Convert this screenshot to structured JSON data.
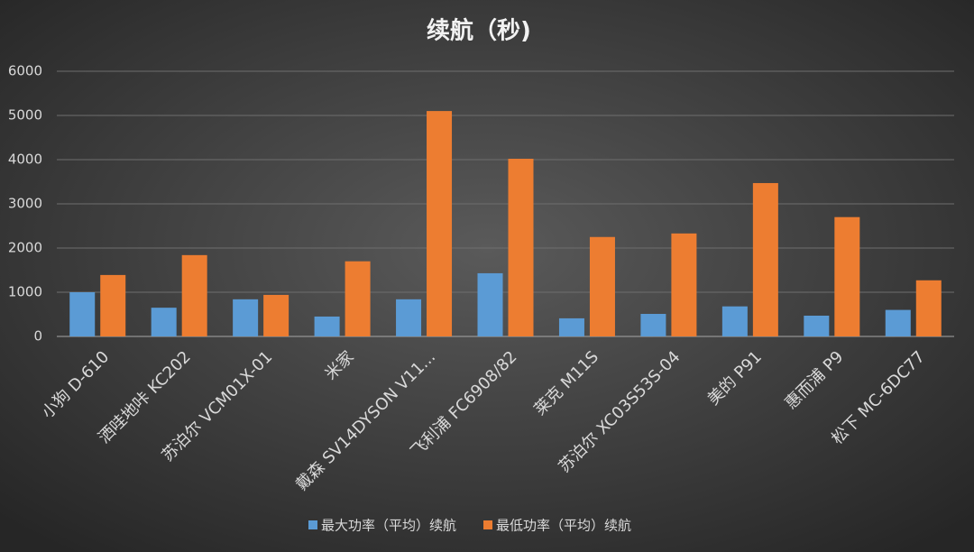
{
  "chart_data": {
    "type": "bar",
    "title": "续航（秒)",
    "categories": [
      "小狗 D-610",
      "洒哇地咔 KC202",
      "苏泊尔 VCM01X-01",
      "米家",
      "戴森 SV14DYSON V11...",
      "飞利浦 FC6908/82",
      "莱克 M11S",
      "苏泊尔 XC03S53S-04",
      "美的 P91",
      "惠而浦 P9",
      "松下 MC-6DC77"
    ],
    "series": [
      {
        "name": "最大功率（平均）续航",
        "color": "#5b9bd5",
        "values": [
          1000,
          650,
          840,
          450,
          840,
          1430,
          410,
          510,
          680,
          470,
          600
        ]
      },
      {
        "name": "最低功率（平均）续航",
        "color": "#ed7d31",
        "values": [
          1390,
          1840,
          940,
          1700,
          5100,
          4020,
          2250,
          2330,
          3470,
          2700,
          1270
        ]
      }
    ],
    "ylim": [
      0,
      6000
    ],
    "yticks": [
      0,
      1000,
      2000,
      3000,
      4000,
      5000,
      6000
    ],
    "grid": true,
    "legend": "bottom"
  }
}
